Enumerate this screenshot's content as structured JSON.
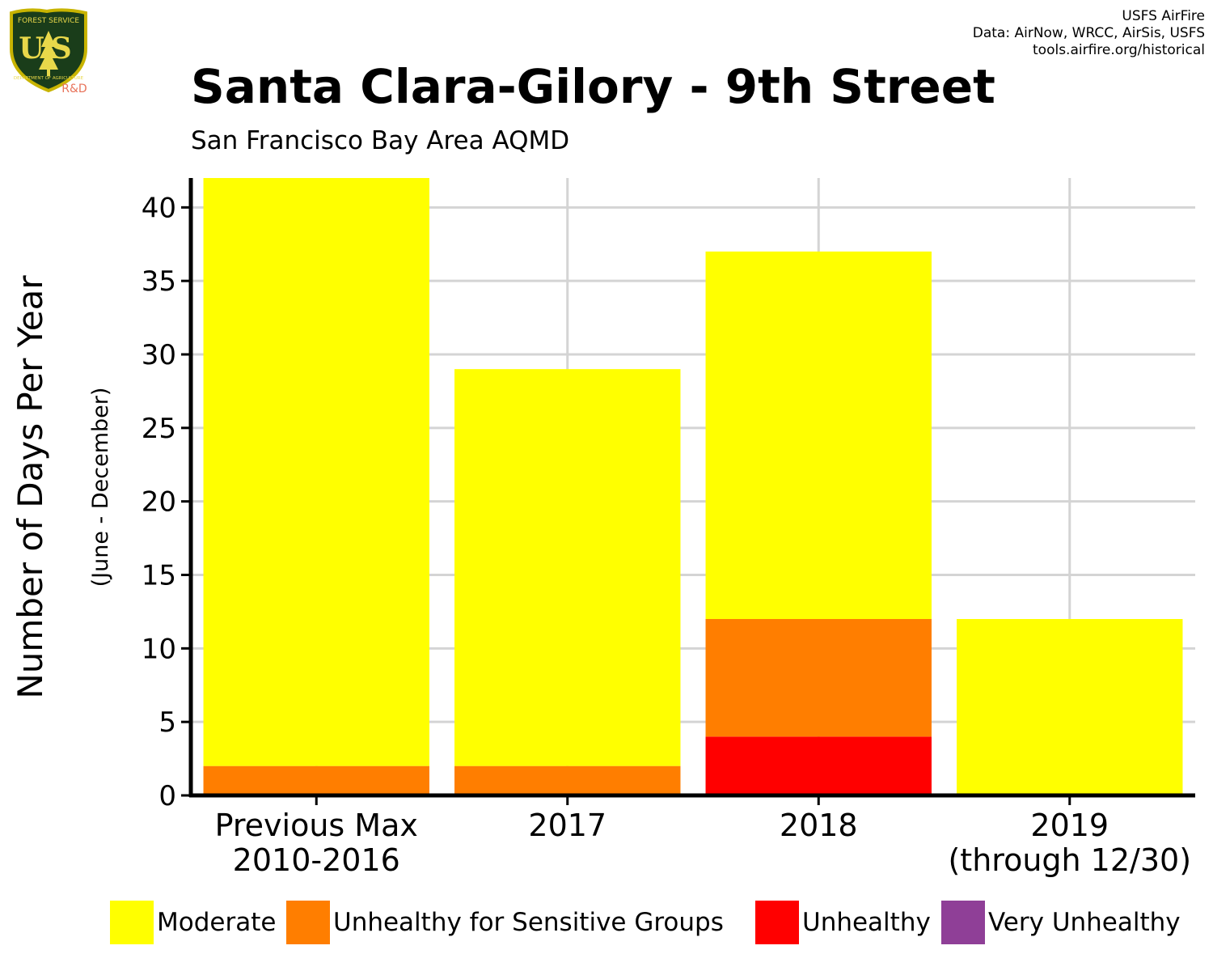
{
  "header": {
    "title": "Santa Clara-Gilory - 9th Street",
    "subtitle": "San Francisco Bay Area AQMD",
    "credits": [
      "USFS AirFire",
      "Data: AirNow, WRCC, AirSis, USFS",
      "tools.airfire.org/historical"
    ]
  },
  "logo": {
    "text_top": "FOREST SERVICE",
    "text_main": "US",
    "text_bottom": "DEPARTMENT OF AGRICULTURE",
    "tag": "R&D",
    "colors": {
      "shield": "#1a3d1a",
      "border": "#c8b400",
      "text": "#e8d84a",
      "tag": "#e8735a"
    }
  },
  "chart_data": {
    "type": "bar",
    "stacked": true,
    "categories": [
      [
        "Previous Max",
        "2010-2016"
      ],
      [
        "2017"
      ],
      [
        "2018"
      ],
      [
        "2019",
        "(through 12/30)"
      ]
    ],
    "series": [
      {
        "name": "Unhealthy",
        "color": "#ff0000",
        "values": [
          0,
          0,
          4,
          0
        ]
      },
      {
        "name": "Unhealthy for Sensitive Groups",
        "color": "#ff7e00",
        "values": [
          2,
          2,
          8,
          0
        ]
      },
      {
        "name": "Moderate",
        "color": "#ffff00",
        "values": [
          40,
          27,
          25,
          12
        ]
      },
      {
        "name": "Very Unhealthy",
        "color": "#8f3f97",
        "values": [
          0,
          0,
          0,
          0
        ]
      }
    ],
    "ylabel": "Number of Days Per Year",
    "ylabel_sub": "(June - December)",
    "xlabel": "",
    "ylim": [
      0,
      42
    ],
    "yticks": [
      0,
      5,
      10,
      15,
      20,
      25,
      30,
      35,
      40
    ],
    "grid": true,
    "legend_position": "bottom",
    "legend_order": [
      "Moderate",
      "Unhealthy for Sensitive Groups",
      "Unhealthy",
      "Very Unhealthy"
    ]
  }
}
